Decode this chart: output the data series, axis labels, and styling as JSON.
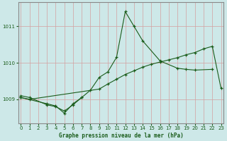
{
  "title": "Graphe pression niveau de la mer (hPa)",
  "background_color": "#cde8e8",
  "grid_color": "#d4a0a0",
  "line_color": "#1a5c1a",
  "x_ticks": [
    0,
    1,
    2,
    3,
    4,
    5,
    6,
    7,
    8,
    9,
    10,
    11,
    12,
    13,
    14,
    15,
    16,
    17,
    18,
    19,
    20,
    21,
    22,
    23
  ],
  "y_ticks": [
    1009,
    1010,
    1011
  ],
  "ylim": [
    1008.35,
    1011.65
  ],
  "xlim": [
    -0.3,
    23.3
  ],
  "line1_x": [
    0,
    1,
    3,
    4,
    5,
    6,
    7,
    8,
    9,
    10,
    11,
    12,
    13,
    14,
    16,
    18,
    19,
    20,
    22
  ],
  "line1_y": [
    1009.1,
    1009.05,
    1008.85,
    1008.8,
    1008.68,
    1008.85,
    1009.05,
    1009.25,
    1009.6,
    1009.75,
    1010.15,
    1011.4,
    1011.0,
    1010.6,
    1010.05,
    1009.85,
    1009.82,
    1009.8,
    1009.82
  ],
  "line2_x": [
    0,
    3,
    4,
    5,
    6,
    7
  ],
  "line2_y": [
    1009.05,
    1008.88,
    1008.82,
    1008.62,
    1008.88,
    1009.05
  ],
  "line3_x": [
    0,
    1,
    9,
    10,
    11,
    12,
    13,
    14,
    15,
    16,
    17,
    18,
    19,
    20,
    21,
    22,
    23
  ],
  "line3_y": [
    1009.05,
    1009.0,
    1009.28,
    1009.42,
    1009.55,
    1009.68,
    1009.78,
    1009.88,
    1009.96,
    1010.02,
    1010.08,
    1010.14,
    1010.22,
    1010.28,
    1010.38,
    1010.45,
    1009.3
  ],
  "border_color": "#888888",
  "tick_labelsize": 5,
  "xlabel_fontsize": 5.5,
  "figsize": [
    3.2,
    2.0
  ],
  "dpi": 100
}
